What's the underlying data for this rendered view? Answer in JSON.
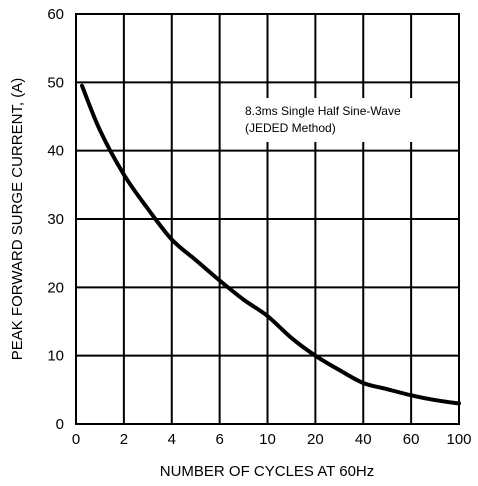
{
  "chart_data": {
    "type": "line",
    "title": "",
    "xlabel": "NUMBER OF CYCLES AT 60Hz",
    "ylabel": "PEAK FORWARD SURGE CURRENT, (A)",
    "x_ticks": [
      "0",
      "2",
      "4",
      "6",
      "10",
      "20",
      "40",
      "60",
      "100"
    ],
    "y_ticks": [
      "0",
      "10",
      "20",
      "30",
      "40",
      "50",
      "60"
    ],
    "ylim": [
      0,
      60
    ],
    "grid": true,
    "annotation": [
      "8.3ms Single Half Sine-Wave",
      "(JEDED Method)"
    ],
    "series": [
      {
        "x": [
          "0",
          "1",
          "2",
          "3",
          "4",
          "5",
          "6",
          "8",
          "10",
          "15",
          "20",
          "30",
          "40",
          "50",
          "60",
          "80",
          "100"
        ],
        "y": [
          49.5,
          43,
          36.5,
          31.5,
          27,
          24,
          21,
          18.2,
          15.8,
          12.6,
          10,
          7.9,
          6.0,
          5.1,
          4.2,
          3.5,
          3.0
        ]
      }
    ]
  }
}
